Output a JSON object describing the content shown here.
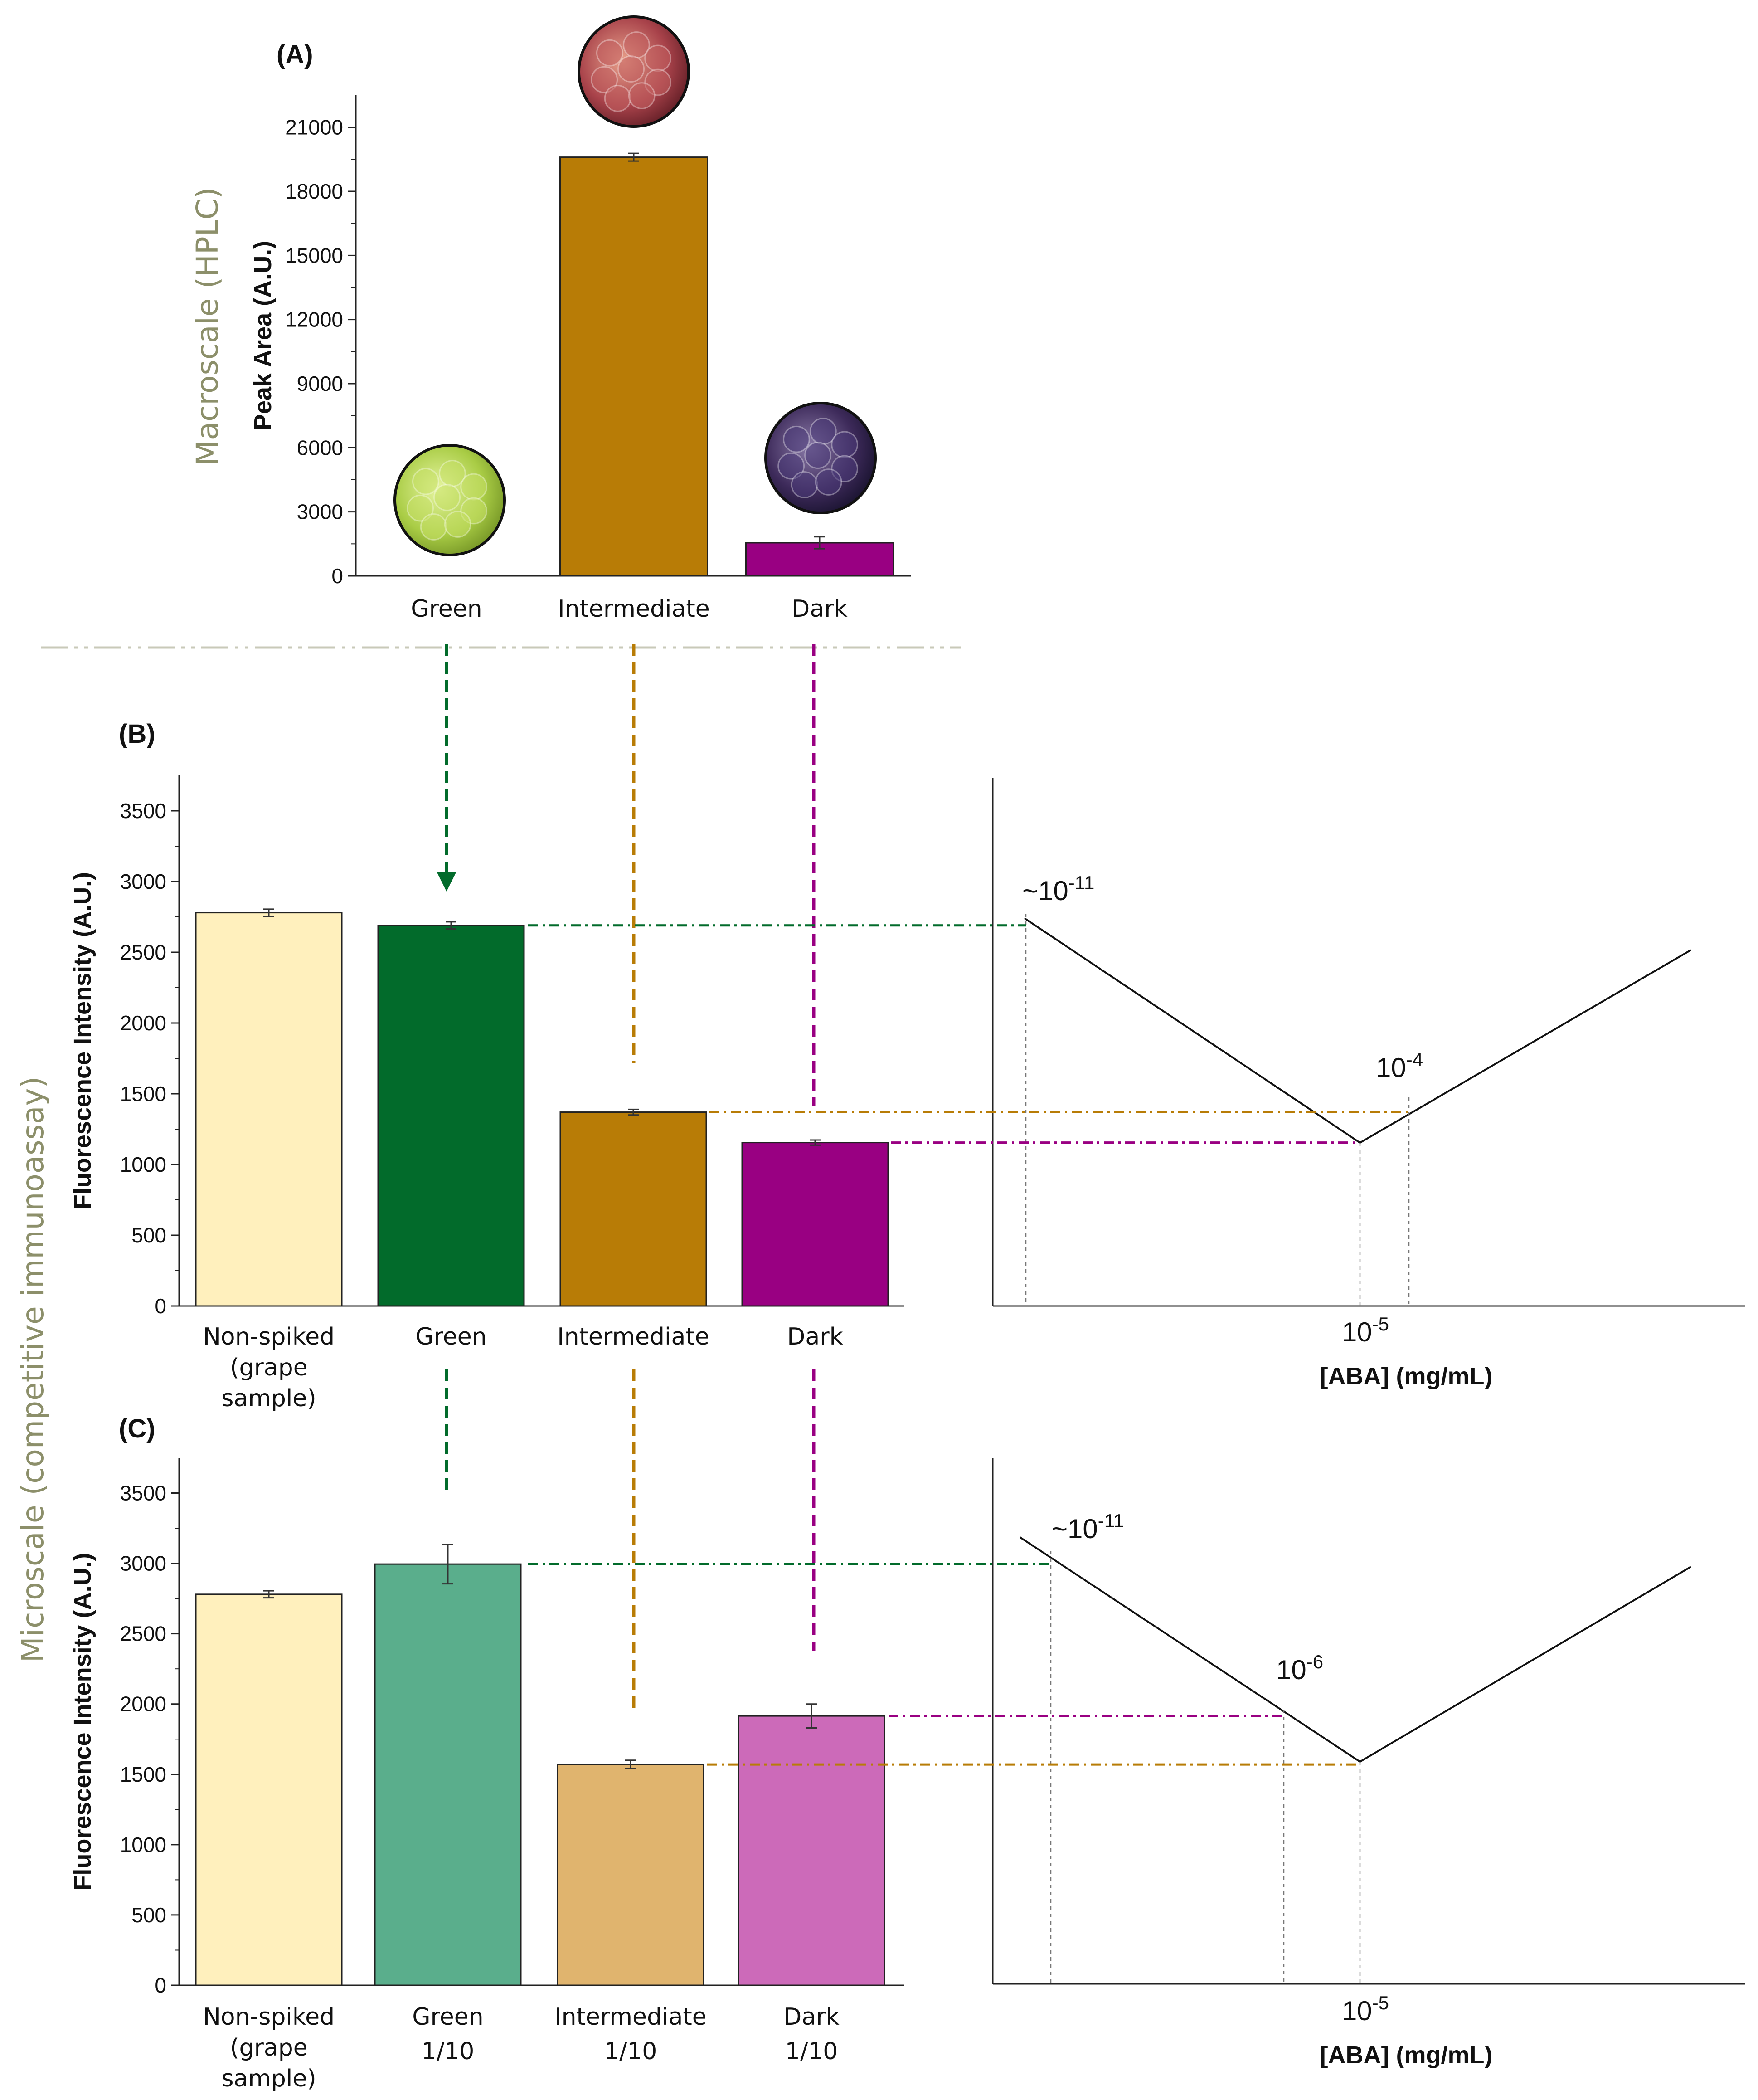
{
  "side_labels": {
    "macro": "Macroscale (HPLC)",
    "micro": "Microscale (competitive immunoassay)"
  },
  "colors": {
    "green": "#026b2b",
    "intermediate": "#b87c06",
    "dark": "#990082",
    "nonspiked": "#fff0bd",
    "green_light": "#5aae8c",
    "intermediate_light": "#e0b46e",
    "dark_light": "#cc6ab9",
    "sep_line": "#c8c9b8",
    "side_text": "#8c8f6a"
  },
  "chart_data": [
    {
      "panel": "(A)",
      "type": "bar",
      "ylabel": "Peak Area (A.U.)",
      "ylim": [
        0,
        22500
      ],
      "yticks": [
        0,
        3000,
        6000,
        9000,
        12000,
        15000,
        18000,
        21000
      ],
      "categories": [
        "Green",
        "Intermediate",
        "Dark"
      ],
      "values": [
        0,
        19600,
        1550
      ],
      "errors": [
        0,
        180,
        280
      ],
      "images": [
        "green grapes",
        "red grapes",
        "dark grapes"
      ]
    },
    {
      "panel": "(B)",
      "type": "bar",
      "ylabel": "Fluorescence Intensity (A.U.)",
      "ylim": [
        0,
        3750
      ],
      "yticks": [
        0,
        500,
        1000,
        1500,
        2000,
        2500,
        3000,
        3500
      ],
      "categories": [
        {
          "lines": [
            "Non-spiked",
            "(grape",
            "sample)"
          ]
        },
        {
          "lines": [
            "Green"
          ]
        },
        {
          "lines": [
            "Intermediate"
          ]
        },
        {
          "lines": [
            "Dark"
          ]
        }
      ],
      "values": [
        2780,
        2690,
        1370,
        1155
      ],
      "errors": [
        25,
        25,
        20,
        18
      ],
      "curve": {
        "xlabel": "[ABA] (mg/mL)",
        "center_tick": {
          "base": "10",
          "exp": "-5"
        },
        "annotations": [
          {
            "prefix": "~10",
            "exp": "-11"
          },
          {
            "prefix": "10",
            "exp": "-4"
          }
        ]
      }
    },
    {
      "panel": "(C)",
      "type": "bar",
      "ylabel": "Fluorescence Intensity (A.U.)",
      "ylim": [
        0,
        3750
      ],
      "yticks": [
        0,
        500,
        1000,
        1500,
        2000,
        2500,
        3000,
        3500
      ],
      "categories": [
        {
          "lines": [
            "Non-spiked",
            "(grape",
            "sample)"
          ]
        },
        {
          "lines": [
            "Green",
            "1/10"
          ]
        },
        {
          "lines": [
            "Intermediate",
            "1/10"
          ]
        },
        {
          "lines": [
            "Dark",
            "1/10"
          ]
        }
      ],
      "values": [
        2780,
        2995,
        1570,
        1915
      ],
      "errors": [
        25,
        140,
        30,
        85
      ],
      "curve": {
        "xlabel": "[ABA] (mg/mL)",
        "center_tick": {
          "base": "10",
          "exp": "-5"
        },
        "annotations": [
          {
            "prefix": "~10",
            "exp": "-11"
          },
          {
            "prefix": "10",
            "exp": "-6"
          }
        ]
      }
    }
  ]
}
